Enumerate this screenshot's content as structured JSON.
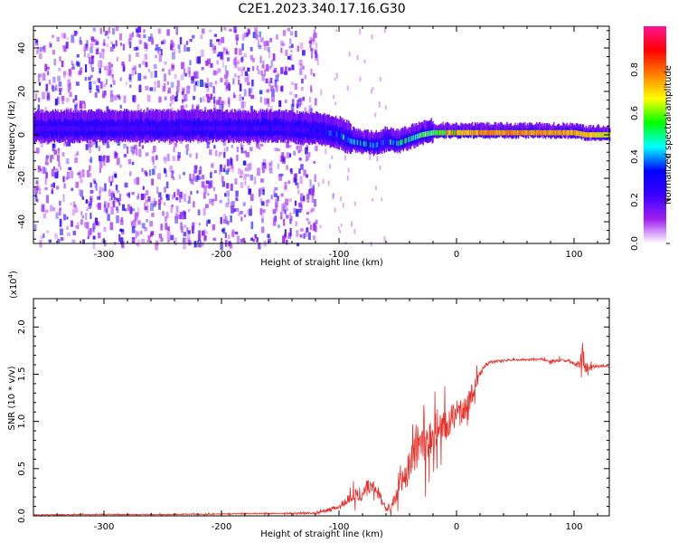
{
  "title": "C2E1.2023.340.17.16.G30",
  "colorbar": {
    "label": "Normalized spectral amplitude",
    "ticks": [
      "0.0",
      "0.2",
      "0.4",
      "0.6",
      "0.8"
    ],
    "tick_values": [
      0.0,
      0.2,
      0.4,
      0.6,
      0.8
    ],
    "colors": [
      "#ffffff",
      "#a020f0",
      "#3b00ff",
      "#0000ff",
      "#00ffff",
      "#00ff00",
      "#ffff00",
      "#ff8000",
      "#ff0000",
      "#ff1493"
    ]
  },
  "chart_data": [
    {
      "type": "heatmap",
      "title": "",
      "xlabel": "Height of straight line (km)",
      "ylabel": "Frequency (Hz)",
      "xlim": [
        -360,
        130
      ],
      "ylim": [
        -50,
        50
      ],
      "xticks": [
        "-300",
        "-200",
        "-100",
        "0",
        "100"
      ],
      "xtick_values": [
        -300,
        -200,
        -100,
        0,
        100
      ],
      "yticks": [
        "-40",
        "-20",
        "0",
        "20",
        "40"
      ],
      "ytick_values": [
        -40,
        -20,
        0,
        20,
        40
      ],
      "noise_region_x": [
        -360,
        -120
      ],
      "ridge": {
        "x": [
          -360,
          -300,
          -200,
          -150,
          -120,
          -100,
          -90,
          -80,
          -70,
          -60,
          -50,
          -40,
          -30,
          -20,
          -10,
          0,
          20,
          50,
          80,
          100,
          110,
          130
        ],
        "frequency": [
          3,
          3,
          3,
          3,
          2,
          0,
          -3,
          -4,
          -5,
          -3,
          -4,
          -2,
          0,
          1,
          1,
          1,
          1,
          1,
          1,
          1,
          0,
          0
        ],
        "amplitude": [
          0.25,
          0.28,
          0.3,
          0.3,
          0.35,
          0.45,
          0.5,
          0.55,
          0.5,
          0.45,
          0.55,
          0.6,
          0.7,
          0.75,
          0.8,
          0.85,
          0.9,
          0.9,
          0.9,
          0.88,
          0.85,
          0.8
        ]
      }
    },
    {
      "type": "line",
      "title": "",
      "xlabel": "Height of straight line (km)",
      "ylabel": "SNR (10 * v/v)",
      "exponent_label": "(x10",
      "exponent_power": "4",
      "exponent_close": ")",
      "xlim": [
        -360,
        130
      ],
      "ylim": [
        0,
        23000
      ],
      "xticks": [
        "-300",
        "-200",
        "-100",
        "0",
        "100"
      ],
      "xtick_values": [
        -300,
        -200,
        -100,
        0,
        100
      ],
      "yticks": [
        "0.0",
        "0.5",
        "1.0",
        "1.5",
        "2.0"
      ],
      "ytick_values": [
        0,
        5000,
        10000,
        15000,
        20000
      ],
      "series": [
        {
          "color": "#e8302a",
          "x": [
            -360,
            -300,
            -250,
            -200,
            -150,
            -120,
            -110,
            -100,
            -90,
            -80,
            -75,
            -70,
            -65,
            -60,
            -55,
            -50,
            -45,
            -40,
            -35,
            -30,
            -25,
            -20,
            -15,
            -10,
            -5,
            0,
            5,
            10,
            15,
            20,
            25,
            30,
            40,
            50,
            60,
            70,
            80,
            90,
            100,
            105,
            108,
            110,
            115,
            120,
            130
          ],
          "values": [
            100,
            150,
            150,
            200,
            250,
            300,
            600,
            1000,
            2000,
            2500,
            3200,
            3500,
            2000,
            800,
            1000,
            2500,
            4000,
            5000,
            6500,
            7000,
            7500,
            8500,
            9000,
            9500,
            10000,
            10800,
            11000,
            12000,
            13500,
            15000,
            16000,
            16300,
            16500,
            16500,
            16500,
            16600,
            16400,
            16500,
            16200,
            16000,
            17000,
            15500,
            15800,
            15900,
            15800
          ],
          "noise": [
            60,
            80,
            80,
            90,
            100,
            150,
            300,
            400,
            900,
            1400,
            1600,
            1500,
            1000,
            500,
            800,
            1500,
            2500,
            3500,
            4000,
            3500,
            3500,
            3200,
            3000,
            2800,
            2600,
            2500,
            2200,
            2000,
            1500,
            900,
            400,
            200,
            150,
            150,
            150,
            200,
            250,
            300,
            400,
            800,
            3500,
            1800,
            300,
            200,
            150
          ]
        }
      ]
    }
  ]
}
